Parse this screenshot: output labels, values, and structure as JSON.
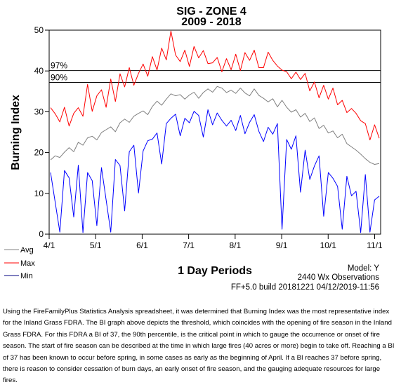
{
  "chart_data": {
    "type": "line",
    "title": "SIG - ZONE 4",
    "subtitle": "2009 - 2018",
    "ylabel": "Burning Index",
    "xlabel": "1 Day Periods",
    "ylim": [
      0,
      50
    ],
    "yticks": [
      "0",
      "10",
      "20",
      "30",
      "40",
      "50"
    ],
    "xticks": [
      "4/1",
      "5/1",
      "6/1",
      "7/1",
      "8/1",
      "9/1",
      "10/1",
      "11/1"
    ],
    "grid": false,
    "legend_position": "bottom-left",
    "thresholds": [
      {
        "label": "97%",
        "value": 40.1
      },
      {
        "label": "90%",
        "value": 37.2
      }
    ],
    "series": [
      {
        "name": "Avg",
        "color": "#808080",
        "x_start": "4/1",
        "values": [
          18.2,
          19.2,
          18.8,
          20.1,
          21.2,
          20.2,
          22.5,
          21.8,
          23.6,
          24.0,
          23.1,
          24.9,
          25.6,
          26.3,
          25.1,
          27.3,
          28.2,
          27.4,
          28.9,
          29.6,
          30.2,
          29.3,
          31.3,
          32.6,
          31.6,
          33.1,
          34.4,
          33.9,
          34.2,
          33.1,
          34.1,
          34.8,
          33.3,
          34.7,
          35.6,
          34.8,
          36.2,
          35.8,
          34.7,
          35.3,
          34.5,
          35.8,
          34.6,
          33.9,
          35.6,
          34.0,
          33.3,
          32.4,
          33.2,
          31.2,
          32.8,
          31.1,
          29.9,
          30.5,
          28.7,
          29.6,
          27.6,
          28.5,
          25.9,
          26.7,
          24.8,
          25.3,
          23.6,
          24.5,
          22.2,
          21.4,
          20.6,
          19.6,
          18.5,
          17.6,
          17.1,
          17.3
        ]
      },
      {
        "name": "Max",
        "color": "#ff0000",
        "x_start": "4/1",
        "values": [
          31,
          29.5,
          27.5,
          31.1,
          26.5,
          29.6,
          31,
          28.9,
          36.7,
          30.1,
          33.9,
          35.4,
          31.1,
          38,
          32.5,
          39.3,
          36.1,
          40.8,
          36.5,
          39.4,
          41.7,
          38.7,
          43.5,
          40.2,
          45.6,
          42.7,
          49.8,
          43.9,
          42.3,
          45.1,
          41.1,
          46,
          43.2,
          45,
          41.8,
          42,
          43.3,
          39.8,
          43,
          40.3,
          44.1,
          40.1,
          44.5,
          42.6,
          45.1,
          40.8,
          40.8,
          44.6,
          42.6,
          41.2,
          40.2,
          39.8,
          38.1,
          39.7,
          37.9,
          39.4,
          35.1,
          37.3,
          33.4,
          36.5,
          33.1,
          35.8,
          31.7,
          32.8,
          29.8,
          30.8,
          29.6,
          27.8,
          27.1,
          23.1,
          26.8,
          23.5
        ]
      },
      {
        "name": "Min",
        "color": "#0000ff",
        "x_start": "4/1",
        "values": [
          15.1,
          7.8,
          0.5,
          15.6,
          13.8,
          4.2,
          16.9,
          0.4,
          15.1,
          13.1,
          2.1,
          16.3,
          8.4,
          0.5,
          18.3,
          16.8,
          5.7,
          20.2,
          21.8,
          10.1,
          20.4,
          22.9,
          23.3,
          24.8,
          17.2,
          27.1,
          28.4,
          29.4,
          24.1,
          28.4,
          27.3,
          30.1,
          29.1,
          23.8,
          30.5,
          26.8,
          29.7,
          27.9,
          26.5,
          27.9,
          25.4,
          29.1,
          24.6,
          27.4,
          29.3,
          25.2,
          22.7,
          26.2,
          24.5,
          27.1,
          1.2,
          23.2,
          20.8,
          24.1,
          10.3,
          20.6,
          13.4,
          16.7,
          19.2,
          4.4,
          15.1,
          13.7,
          11.7,
          1.2,
          14.2,
          9.4,
          10.5,
          0.4,
          14.6,
          0.5,
          8.4,
          9.3
        ]
      }
    ]
  },
  "info": {
    "line1": "Model: Y",
    "line2": "2440 Wx Observations",
    "line3": "FF+5.0 build 20181221 04/12/2019-11:56"
  },
  "caption": "Using the FireFamilyPlus Statistics Analysis spreadsheet, it was determined that Burning Index was the most representative index for the Inland Grass FDRA.  The BI graph above depicts the threshold, which coincides with the opening of fire season in the Inland Grass FDRA.  For this FDRA a BI of 37, the 90th percentile, is the critical point in which to gauge the occurrence or onset of fire season. The start of fire season can be described at the time in which large fires (40 acres or more) begin to take off. Reaching a BI of 37 has been known to occur before spring, in some cases as early as the beginning of April. If a BI reaches 37 before spring, there is reason to consider cessation of burn days, an early onset of fire season, and the gauging adequate resources for large fires."
}
